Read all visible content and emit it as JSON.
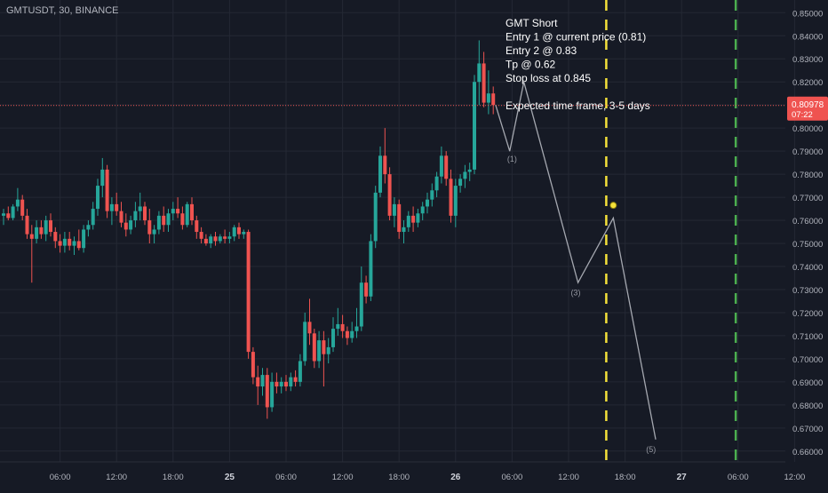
{
  "symbol_label": "GMTUSDT, 30, BINANCE",
  "colors": {
    "background": "#161a25",
    "grid": "#242834",
    "up": "#26a69a",
    "down": "#ef5350",
    "axis_text": "#b2b5be",
    "price_line": "#ef5350",
    "projection": "#a5a8b0",
    "yellow_line": "#f5e13a",
    "green_line": "#4caf50",
    "note_text": "#ffffff"
  },
  "chart_data": {
    "type": "candlestick",
    "symbol": "GMTUSDT",
    "interval": "30",
    "exchange": "BINANCE",
    "ylim": [
      0.6553,
      0.8555
    ],
    "y_ticks": [
      "0.85000",
      "0.84000",
      "0.83000",
      "0.82000",
      "0.81000",
      "0.80000",
      "0.79000",
      "0.78000",
      "0.77000",
      "0.76000",
      "0.75000",
      "0.74000",
      "0.73000",
      "0.72000",
      "0.71000",
      "0.70000",
      "0.69000",
      "0.68000",
      "0.67000",
      "0.66000"
    ],
    "y_tick_values": [
      0.85,
      0.84,
      0.83,
      0.82,
      0.81,
      0.8,
      0.79,
      0.78,
      0.77,
      0.76,
      0.75,
      0.74,
      0.73,
      0.72,
      0.71,
      0.7,
      0.69,
      0.68,
      0.67,
      0.66
    ],
    "x_ticks": [
      {
        "label": "06:00",
        "t": 12
      },
      {
        "label": "12:00",
        "t": 24
      },
      {
        "label": "18:00",
        "t": 36
      },
      {
        "label": "25",
        "t": 48
      },
      {
        "label": "06:00",
        "t": 60
      },
      {
        "label": "12:00",
        "t": 72
      },
      {
        "label": "18:00",
        "t": 84
      },
      {
        "label": "26",
        "t": 96
      },
      {
        "label": "06:00",
        "t": 108
      },
      {
        "label": "12:00",
        "t": 120
      },
      {
        "label": "18:00",
        "t": 132
      },
      {
        "label": "27",
        "t": 144
      },
      {
        "label": "06:00",
        "t": 156
      },
      {
        "label": "12:00",
        "t": 168
      }
    ],
    "candles": [
      {
        "t": 0,
        "o": 0.762,
        "h": 0.765,
        "l": 0.758,
        "c": 0.763
      },
      {
        "t": 1,
        "o": 0.763,
        "h": 0.766,
        "l": 0.76,
        "c": 0.761
      },
      {
        "t": 2,
        "o": 0.761,
        "h": 0.767,
        "l": 0.76,
        "c": 0.766
      },
      {
        "t": 3,
        "o": 0.766,
        "h": 0.774,
        "l": 0.764,
        "c": 0.769
      },
      {
        "t": 4,
        "o": 0.769,
        "h": 0.771,
        "l": 0.76,
        "c": 0.762
      },
      {
        "t": 5,
        "o": 0.762,
        "h": 0.765,
        "l": 0.752,
        "c": 0.754
      },
      {
        "t": 6,
        "o": 0.754,
        "h": 0.758,
        "l": 0.733,
        "c": 0.752
      },
      {
        "t": 7,
        "o": 0.752,
        "h": 0.76,
        "l": 0.75,
        "c": 0.757
      },
      {
        "t": 8,
        "o": 0.757,
        "h": 0.76,
        "l": 0.752,
        "c": 0.754
      },
      {
        "t": 9,
        "o": 0.754,
        "h": 0.762,
        "l": 0.751,
        "c": 0.76
      },
      {
        "t": 10,
        "o": 0.76,
        "h": 0.763,
        "l": 0.753,
        "c": 0.755
      },
      {
        "t": 11,
        "o": 0.755,
        "h": 0.757,
        "l": 0.748,
        "c": 0.751
      },
      {
        "t": 12,
        "o": 0.751,
        "h": 0.754,
        "l": 0.746,
        "c": 0.749
      },
      {
        "t": 13,
        "o": 0.749,
        "h": 0.755,
        "l": 0.746,
        "c": 0.752
      },
      {
        "t": 14,
        "o": 0.752,
        "h": 0.755,
        "l": 0.747,
        "c": 0.749
      },
      {
        "t": 15,
        "o": 0.749,
        "h": 0.753,
        "l": 0.745,
        "c": 0.751
      },
      {
        "t": 16,
        "o": 0.751,
        "h": 0.756,
        "l": 0.747,
        "c": 0.748
      },
      {
        "t": 17,
        "o": 0.748,
        "h": 0.758,
        "l": 0.746,
        "c": 0.756
      },
      {
        "t": 18,
        "o": 0.756,
        "h": 0.76,
        "l": 0.753,
        "c": 0.758
      },
      {
        "t": 19,
        "o": 0.758,
        "h": 0.768,
        "l": 0.756,
        "c": 0.765
      },
      {
        "t": 20,
        "o": 0.765,
        "h": 0.778,
        "l": 0.762,
        "c": 0.775
      },
      {
        "t": 21,
        "o": 0.775,
        "h": 0.787,
        "l": 0.77,
        "c": 0.782
      },
      {
        "t": 22,
        "o": 0.782,
        "h": 0.784,
        "l": 0.761,
        "c": 0.764
      },
      {
        "t": 23,
        "o": 0.764,
        "h": 0.77,
        "l": 0.758,
        "c": 0.767
      },
      {
        "t": 24,
        "o": 0.767,
        "h": 0.772,
        "l": 0.762,
        "c": 0.764
      },
      {
        "t": 25,
        "o": 0.764,
        "h": 0.768,
        "l": 0.757,
        "c": 0.759
      },
      {
        "t": 26,
        "o": 0.759,
        "h": 0.763,
        "l": 0.753,
        "c": 0.756
      },
      {
        "t": 27,
        "o": 0.756,
        "h": 0.762,
        "l": 0.754,
        "c": 0.76
      },
      {
        "t": 28,
        "o": 0.76,
        "h": 0.768,
        "l": 0.757,
        "c": 0.764
      },
      {
        "t": 29,
        "o": 0.764,
        "h": 0.772,
        "l": 0.76,
        "c": 0.766
      },
      {
        "t": 30,
        "o": 0.766,
        "h": 0.768,
        "l": 0.758,
        "c": 0.76
      },
      {
        "t": 31,
        "o": 0.76,
        "h": 0.765,
        "l": 0.75,
        "c": 0.754
      },
      {
        "t": 32,
        "o": 0.754,
        "h": 0.758,
        "l": 0.75,
        "c": 0.756
      },
      {
        "t": 33,
        "o": 0.756,
        "h": 0.764,
        "l": 0.754,
        "c": 0.762
      },
      {
        "t": 34,
        "o": 0.762,
        "h": 0.766,
        "l": 0.755,
        "c": 0.758
      },
      {
        "t": 35,
        "o": 0.758,
        "h": 0.765,
        "l": 0.755,
        "c": 0.763
      },
      {
        "t": 36,
        "o": 0.763,
        "h": 0.768,
        "l": 0.76,
        "c": 0.765
      },
      {
        "t": 37,
        "o": 0.765,
        "h": 0.77,
        "l": 0.761,
        "c": 0.763
      },
      {
        "t": 38,
        "o": 0.763,
        "h": 0.766,
        "l": 0.756,
        "c": 0.758
      },
      {
        "t": 39,
        "o": 0.758,
        "h": 0.768,
        "l": 0.757,
        "c": 0.767
      },
      {
        "t": 40,
        "o": 0.767,
        "h": 0.77,
        "l": 0.758,
        "c": 0.76
      },
      {
        "t": 41,
        "o": 0.76,
        "h": 0.762,
        "l": 0.752,
        "c": 0.755
      },
      {
        "t": 42,
        "o": 0.755,
        "h": 0.757,
        "l": 0.75,
        "c": 0.752
      },
      {
        "t": 43,
        "o": 0.752,
        "h": 0.754,
        "l": 0.749,
        "c": 0.75
      },
      {
        "t": 44,
        "o": 0.75,
        "h": 0.754,
        "l": 0.748,
        "c": 0.753
      },
      {
        "t": 45,
        "o": 0.753,
        "h": 0.755,
        "l": 0.749,
        "c": 0.751
      },
      {
        "t": 46,
        "o": 0.751,
        "h": 0.754,
        "l": 0.75,
        "c": 0.753
      },
      {
        "t": 47,
        "o": 0.753,
        "h": 0.756,
        "l": 0.75,
        "c": 0.752
      },
      {
        "t": 48,
        "o": 0.752,
        "h": 0.755,
        "l": 0.75,
        "c": 0.753
      },
      {
        "t": 49,
        "o": 0.753,
        "h": 0.758,
        "l": 0.751,
        "c": 0.757
      },
      {
        "t": 50,
        "o": 0.757,
        "h": 0.759,
        "l": 0.752,
        "c": 0.754
      },
      {
        "t": 51,
        "o": 0.754,
        "h": 0.756,
        "l": 0.752,
        "c": 0.755
      },
      {
        "t": 52,
        "o": 0.755,
        "h": 0.756,
        "l": 0.7,
        "c": 0.703
      },
      {
        "t": 53,
        "o": 0.703,
        "h": 0.705,
        "l": 0.689,
        "c": 0.692
      },
      {
        "t": 54,
        "o": 0.692,
        "h": 0.697,
        "l": 0.68,
        "c": 0.688
      },
      {
        "t": 55,
        "o": 0.688,
        "h": 0.696,
        "l": 0.684,
        "c": 0.693
      },
      {
        "t": 56,
        "o": 0.693,
        "h": 0.696,
        "l": 0.674,
        "c": 0.679
      },
      {
        "t": 57,
        "o": 0.679,
        "h": 0.694,
        "l": 0.677,
        "c": 0.69
      },
      {
        "t": 58,
        "o": 0.69,
        "h": 0.694,
        "l": 0.685,
        "c": 0.688
      },
      {
        "t": 59,
        "o": 0.688,
        "h": 0.692,
        "l": 0.685,
        "c": 0.69
      },
      {
        "t": 60,
        "o": 0.69,
        "h": 0.693,
        "l": 0.686,
        "c": 0.688
      },
      {
        "t": 61,
        "o": 0.688,
        "h": 0.694,
        "l": 0.686,
        "c": 0.692
      },
      {
        "t": 62,
        "o": 0.692,
        "h": 0.695,
        "l": 0.688,
        "c": 0.69
      },
      {
        "t": 63,
        "o": 0.69,
        "h": 0.702,
        "l": 0.688,
        "c": 0.699
      },
      {
        "t": 64,
        "o": 0.699,
        "h": 0.72,
        "l": 0.697,
        "c": 0.716
      },
      {
        "t": 65,
        "o": 0.716,
        "h": 0.726,
        "l": 0.706,
        "c": 0.711
      },
      {
        "t": 66,
        "o": 0.711,
        "h": 0.713,
        "l": 0.696,
        "c": 0.699
      },
      {
        "t": 67,
        "o": 0.699,
        "h": 0.712,
        "l": 0.696,
        "c": 0.708
      },
      {
        "t": 68,
        "o": 0.708,
        "h": 0.712,
        "l": 0.688,
        "c": 0.702
      },
      {
        "t": 69,
        "o": 0.702,
        "h": 0.709,
        "l": 0.698,
        "c": 0.705
      },
      {
        "t": 70,
        "o": 0.705,
        "h": 0.718,
        "l": 0.703,
        "c": 0.713
      },
      {
        "t": 71,
        "o": 0.713,
        "h": 0.722,
        "l": 0.71,
        "c": 0.715
      },
      {
        "t": 72,
        "o": 0.715,
        "h": 0.719,
        "l": 0.709,
        "c": 0.712
      },
      {
        "t": 73,
        "o": 0.712,
        "h": 0.714,
        "l": 0.706,
        "c": 0.709
      },
      {
        "t": 74,
        "o": 0.709,
        "h": 0.716,
        "l": 0.707,
        "c": 0.712
      },
      {
        "t": 75,
        "o": 0.712,
        "h": 0.722,
        "l": 0.709,
        "c": 0.714
      },
      {
        "t": 76,
        "o": 0.714,
        "h": 0.74,
        "l": 0.712,
        "c": 0.733
      },
      {
        "t": 77,
        "o": 0.733,
        "h": 0.736,
        "l": 0.724,
        "c": 0.727
      },
      {
        "t": 78,
        "o": 0.727,
        "h": 0.754,
        "l": 0.725,
        "c": 0.751
      },
      {
        "t": 79,
        "o": 0.751,
        "h": 0.775,
        "l": 0.748,
        "c": 0.772
      },
      {
        "t": 80,
        "o": 0.772,
        "h": 0.792,
        "l": 0.77,
        "c": 0.788
      },
      {
        "t": 81,
        "o": 0.788,
        "h": 0.8,
        "l": 0.776,
        "c": 0.78
      },
      {
        "t": 82,
        "o": 0.78,
        "h": 0.783,
        "l": 0.76,
        "c": 0.762
      },
      {
        "t": 83,
        "o": 0.762,
        "h": 0.77,
        "l": 0.757,
        "c": 0.767
      },
      {
        "t": 84,
        "o": 0.767,
        "h": 0.769,
        "l": 0.752,
        "c": 0.755
      },
      {
        "t": 85,
        "o": 0.755,
        "h": 0.76,
        "l": 0.75,
        "c": 0.757
      },
      {
        "t": 86,
        "o": 0.757,
        "h": 0.764,
        "l": 0.755,
        "c": 0.762
      },
      {
        "t": 87,
        "o": 0.762,
        "h": 0.766,
        "l": 0.755,
        "c": 0.759
      },
      {
        "t": 88,
        "o": 0.759,
        "h": 0.765,
        "l": 0.757,
        "c": 0.763
      },
      {
        "t": 89,
        "o": 0.763,
        "h": 0.768,
        "l": 0.76,
        "c": 0.766
      },
      {
        "t": 90,
        "o": 0.766,
        "h": 0.772,
        "l": 0.763,
        "c": 0.769
      },
      {
        "t": 91,
        "o": 0.769,
        "h": 0.776,
        "l": 0.766,
        "c": 0.773
      },
      {
        "t": 92,
        "o": 0.773,
        "h": 0.781,
        "l": 0.77,
        "c": 0.779
      },
      {
        "t": 93,
        "o": 0.779,
        "h": 0.792,
        "l": 0.776,
        "c": 0.788
      },
      {
        "t": 94,
        "o": 0.788,
        "h": 0.79,
        "l": 0.775,
        "c": 0.778
      },
      {
        "t": 95,
        "o": 0.778,
        "h": 0.782,
        "l": 0.759,
        "c": 0.762
      },
      {
        "t": 96,
        "o": 0.762,
        "h": 0.778,
        "l": 0.757,
        "c": 0.775
      },
      {
        "t": 97,
        "o": 0.775,
        "h": 0.78,
        "l": 0.772,
        "c": 0.778
      },
      {
        "t": 98,
        "o": 0.778,
        "h": 0.784,
        "l": 0.774,
        "c": 0.781
      },
      {
        "t": 99,
        "o": 0.781,
        "h": 0.785,
        "l": 0.777,
        "c": 0.782
      },
      {
        "t": 100,
        "o": 0.782,
        "h": 0.823,
        "l": 0.78,
        "c": 0.82
      },
      {
        "t": 101,
        "o": 0.82,
        "h": 0.838,
        "l": 0.81,
        "c": 0.828
      },
      {
        "t": 102,
        "o": 0.828,
        "h": 0.833,
        "l": 0.809,
        "c": 0.811
      },
      {
        "t": 103,
        "o": 0.811,
        "h": 0.825,
        "l": 0.806,
        "c": 0.815
      },
      {
        "t": 104,
        "o": 0.815,
        "h": 0.818,
        "l": 0.806,
        "c": 0.81
      }
    ],
    "current_price": {
      "value": "0.80978",
      "countdown": "07:22"
    },
    "projection": {
      "points": [
        {
          "t": 104.5,
          "y": 0.81
        },
        {
          "t": 107.5,
          "y": 0.79
        },
        {
          "t": 110.5,
          "y": 0.82
        },
        {
          "t": 122,
          "y": 0.733
        },
        {
          "t": 129.5,
          "y": 0.761
        },
        {
          "t": 138.5,
          "y": 0.665
        }
      ],
      "labels": [
        {
          "text": "(1)",
          "t": 108,
          "y": 0.7855
        },
        {
          "text": "(3)",
          "t": 121.5,
          "y": 0.7275
        },
        {
          "text": "(5)",
          "t": 137.5,
          "y": 0.6595
        }
      ],
      "label_4": {
        "t": 129.5,
        "y": 0.7665
      }
    },
    "vlines": [
      {
        "t": 128,
        "color": "yellow"
      },
      {
        "t": 155.5,
        "color": "green"
      }
    ],
    "note_lines": [
      "GMT Short",
      "Entry 1 @ current price (0.81)",
      "Entry 2 @ 0.83",
      "Tp @ 0.62",
      "Stop loss at 0.845",
      "",
      "Expected time frame, 3-5 days"
    ]
  }
}
